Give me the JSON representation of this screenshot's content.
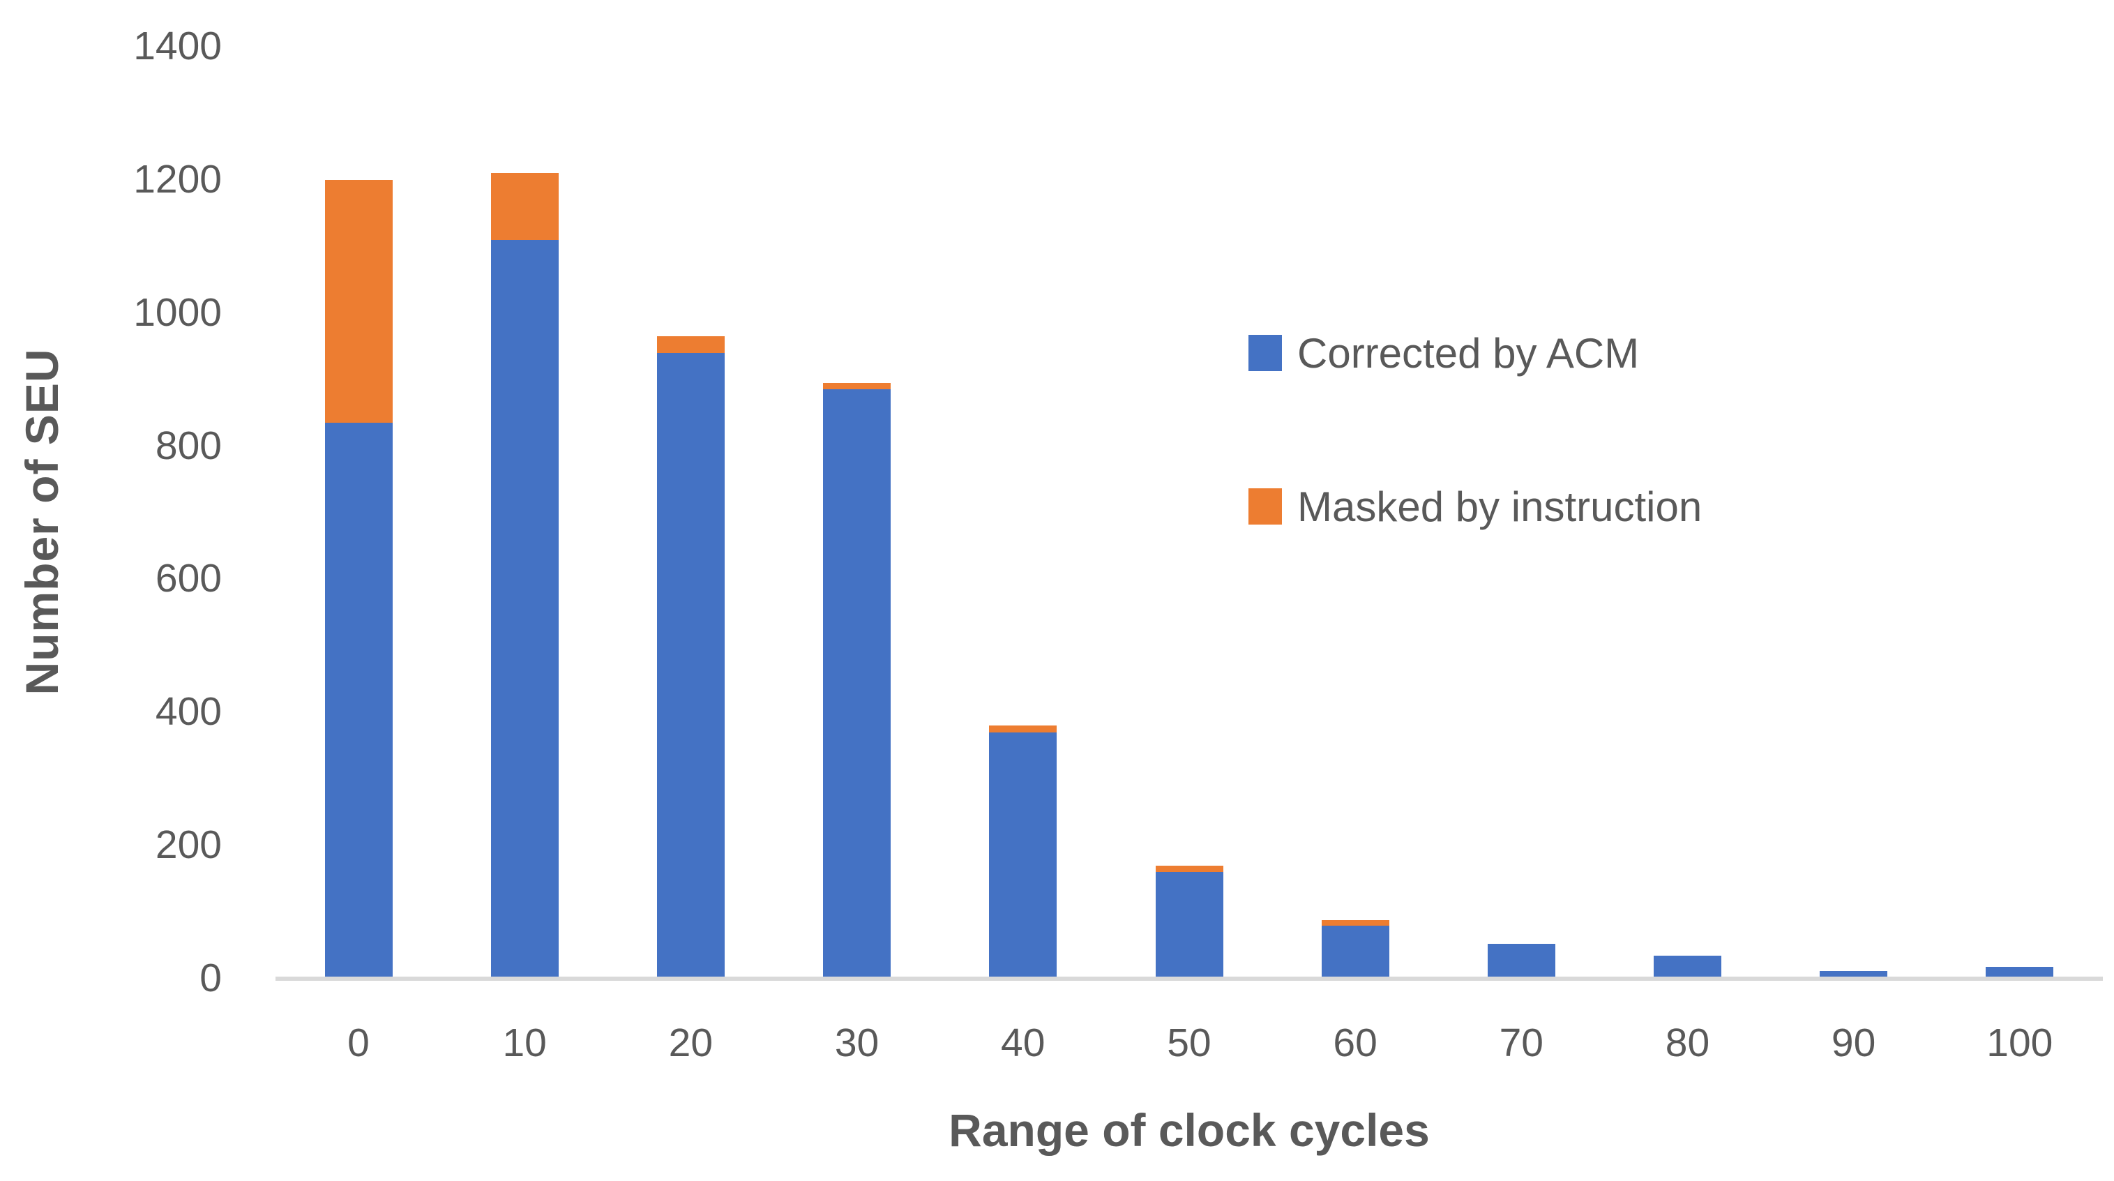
{
  "chart_data": {
    "type": "bar",
    "stacked": true,
    "title": "",
    "xlabel": "Range of clock cycles",
    "ylabel": "Number of SEU",
    "categories": [
      "0",
      "10",
      "20",
      "30",
      "40",
      "50",
      "60",
      "70",
      "80",
      "90",
      "100"
    ],
    "series": [
      {
        "name": "Corrected by ACM",
        "color": "#4472C4",
        "values": [
          835,
          1110,
          940,
          885,
          370,
          160,
          80,
          52,
          35,
          12,
          18
        ]
      },
      {
        "name": "Masked by instruction",
        "color": "#ED7D31",
        "values": [
          365,
          100,
          25,
          10,
          10,
          10,
          8,
          0,
          0,
          0,
          0
        ]
      }
    ],
    "totals": [
      1200,
      1210,
      965,
      895,
      380,
      170,
      88,
      52,
      35,
      12,
      18
    ],
    "y_ticks": [
      0,
      200,
      400,
      600,
      800,
      1000,
      1200,
      1400
    ],
    "ylim": [
      0,
      1400
    ],
    "grid": false,
    "legend_position": "center-right",
    "colors": {
      "axis_line": "#D9D9D9",
      "text": "#595959",
      "background": "#FFFFFF"
    }
  }
}
